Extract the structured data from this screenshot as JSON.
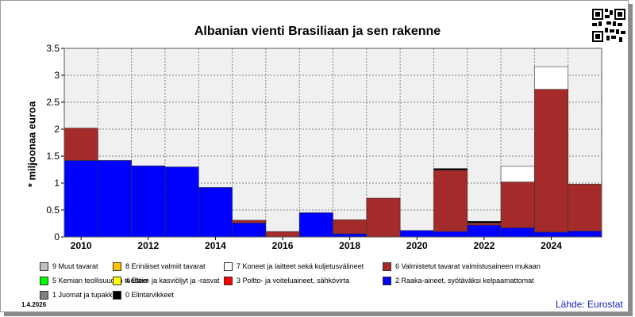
{
  "chart_data": {
    "type": "bar",
    "stacked": true,
    "title": "Albanian vienti Brasiliaan ja sen rakenne",
    "ylabel": "* miljoonaa euroa",
    "xlabel": "",
    "ylim": [
      0,
      3.5
    ],
    "yticks": [
      "0",
      "0.5",
      "1",
      "1.5",
      "2",
      "2.5",
      "3",
      "3.5"
    ],
    "xticks": [
      "2010",
      "2012",
      "2014",
      "2016",
      "2018",
      "2020",
      "2022",
      "2024"
    ],
    "categories": [
      "2010",
      "2011",
      "2012",
      "2013",
      "2014",
      "2015",
      "2016",
      "2017",
      "2018",
      "2019",
      "2020",
      "2021",
      "2022",
      "2023",
      "2024",
      "2025"
    ],
    "grid": true,
    "series": [
      {
        "name": "2 Raaka-aineet, syötäväksi kelpaamattomat",
        "color": "#0000ff",
        "values": [
          1.42,
          1.42,
          1.32,
          1.3,
          0.92,
          0.26,
          0.0,
          0.45,
          0.06,
          0.0,
          0.12,
          0.1,
          0.22,
          0.17,
          0.09,
          0.11
        ]
      },
      {
        "name": "6 Valmistetut tavarat valmistusaineen mukaan",
        "color": "#a52a2a",
        "values": [
          0.6,
          0.0,
          0.0,
          0.0,
          0.0,
          0.05,
          0.1,
          0.0,
          0.26,
          0.72,
          0.0,
          1.14,
          0.04,
          0.85,
          2.65,
          0.87
        ]
      },
      {
        "name": "0 Elintarvikkeet",
        "color": "#000000",
        "values": [
          0,
          0,
          0,
          0,
          0,
          0,
          0,
          0,
          0,
          0,
          0,
          0.03,
          0.03,
          0,
          0,
          0
        ]
      },
      {
        "name": "7 Koneet ja laitteet sekä kuljetusvälineet",
        "color": "#ffffff",
        "values": [
          0,
          0,
          0,
          0,
          0,
          0,
          0,
          0,
          0,
          0,
          0,
          0,
          0,
          0.29,
          0.42,
          0
        ]
      }
    ],
    "legend": [
      {
        "name": "9 Muut tavarat",
        "color": "#c0c0c0"
      },
      {
        "name": "8 Erinäiset valmiit tavarat",
        "color": "#ffc000"
      },
      {
        "name": "7 Koneet ja laitteet sekä kuljetusvälineet",
        "color": "#ffffff"
      },
      {
        "name": "6 Valmistetut tavarat valmistusaineen mukaan",
        "color": "#a52a2a"
      },
      {
        "name": "5 Kemian teollisuuden tuotteet",
        "color": "#00ff00"
      },
      {
        "name": "4 Eläin- ja kasviöljyt ja -rasvat",
        "color": "#ffff00"
      },
      {
        "name": "3 Poltto- ja voiteluaineet, sähkövirta",
        "color": "#ff0000"
      },
      {
        "name": "2 Raaka-aineet, syötäväksi kelpaamattomat",
        "color": "#0000ff"
      },
      {
        "name": "1 Juomat ja tupakka",
        "color": "#808080"
      },
      {
        "name": "0 Elintarvikkeet",
        "color": "#000000"
      }
    ],
    "legend_position": "bottom"
  },
  "footer": {
    "date": "1.4.2026",
    "source": "Lähde: Eurostat"
  }
}
